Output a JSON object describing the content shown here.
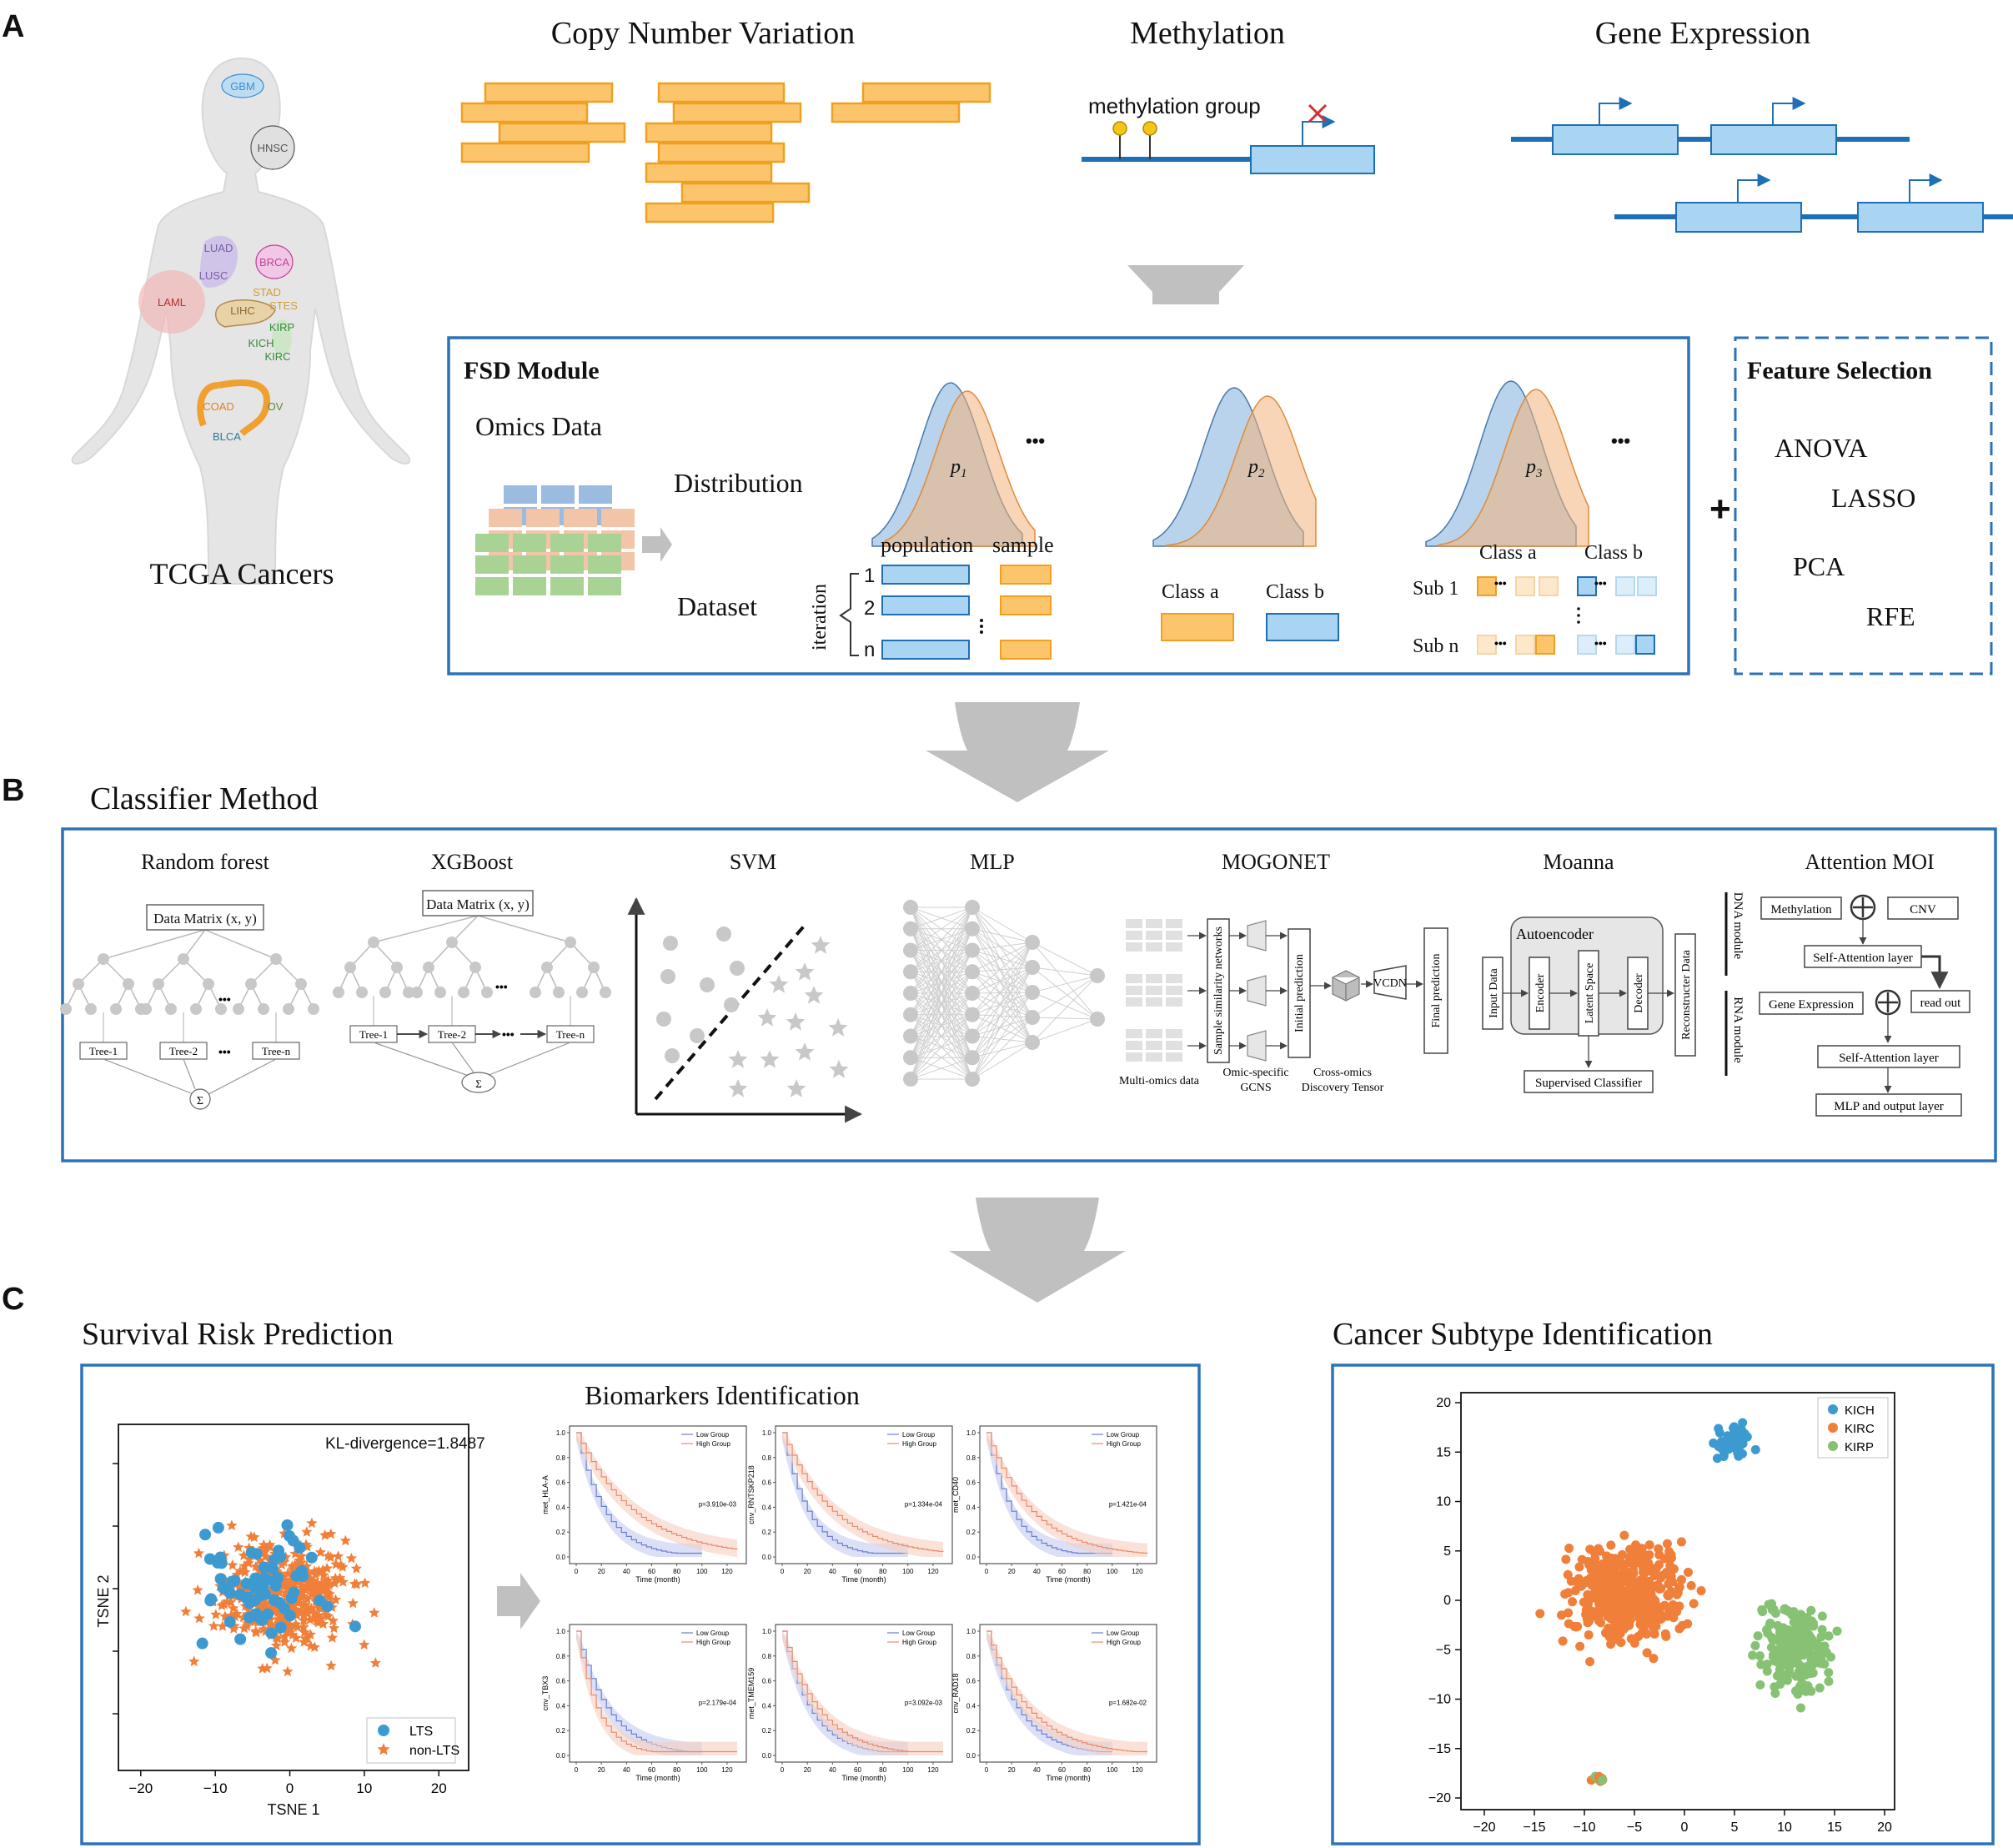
{
  "colors": {
    "orange_fill": "#fcc56c",
    "orange_stroke": "#f0a020",
    "orange_pt": "#f07f3a",
    "blue_fill": "#a9d4f2",
    "blue_stroke": "#1f6fb5",
    "blue_pt": "#3d9ad1",
    "green_pt": "#86c174",
    "frame_blue": "#2b72b8",
    "arrow_gray": "#c0c0c0",
    "low_group": "#6a7fd0",
    "high_group": "#e98a6a"
  },
  "panel_a": {
    "letter": "A",
    "body_organs": [
      {
        "label": "GBM",
        "color": "#3d8fd1",
        "cx": 291,
        "cy": 103,
        "rx": 25,
        "ry": 14,
        "fill": "#bcdcf2"
      },
      {
        "label": "HNSC",
        "color": "#555555",
        "cx": 327,
        "cy": 177,
        "rx": 26,
        "ry": 26,
        "fill": "#e0e0e0"
      },
      {
        "label": "LUAD",
        "color": "#7a5da8",
        "cx": 262,
        "cy": 297,
        "rx": 0,
        "ry": 0,
        "fill": ""
      },
      {
        "label": "LUSC",
        "color": "#7a5da8",
        "cx": 256,
        "cy": 330,
        "rx": 0,
        "ry": 0,
        "fill": ""
      },
      {
        "label": "BRCA",
        "color": "#c2419b",
        "cx": 329,
        "cy": 314,
        "rx": 22,
        "ry": 20,
        "fill": "#f2c7e6"
      },
      {
        "label": "LAML",
        "color": "#b03030",
        "cx": 206,
        "cy": 362,
        "rx": 0,
        "ry": 0,
        "fill": ""
      },
      {
        "label": "STAD",
        "color": "#d0a030",
        "cx": 320,
        "cy": 350,
        "rx": 0,
        "ry": 0,
        "fill": ""
      },
      {
        "label": "STES",
        "color": "#d0a030",
        "cx": 340,
        "cy": 366,
        "rx": 0,
        "ry": 0,
        "fill": ""
      },
      {
        "label": "LIHC",
        "color": "#8a6a30",
        "cx": 291,
        "cy": 372,
        "rx": 0,
        "ry": 0,
        "fill": ""
      },
      {
        "label": "KIRP",
        "color": "#3a8a3a",
        "cx": 338,
        "cy": 392,
        "rx": 0,
        "ry": 0,
        "fill": ""
      },
      {
        "label": "KICH",
        "color": "#3a8a3a",
        "cx": 313,
        "cy": 411,
        "rx": 0,
        "ry": 0,
        "fill": ""
      },
      {
        "label": "KIRC",
        "color": "#3a8a3a",
        "cx": 333,
        "cy": 427,
        "rx": 0,
        "ry": 0,
        "fill": ""
      },
      {
        "label": "COAD",
        "color": "#e08020",
        "cx": 262,
        "cy": 487,
        "rx": 0,
        "ry": 0,
        "fill": ""
      },
      {
        "label": "OV",
        "color": "#5a8a3a",
        "cx": 330,
        "cy": 487,
        "rx": 0,
        "ry": 0,
        "fill": ""
      },
      {
        "label": "BLCA",
        "color": "#2a7a9a",
        "cx": 272,
        "cy": 523,
        "rx": 0,
        "ry": 0,
        "fill": ""
      }
    ],
    "body_caption": "TCGA Cancers",
    "cnv_title": "Copy Number Variation",
    "methylation_title": "Methylation",
    "methylation_group": "methylation group",
    "gene_expression_title": "Gene Expression",
    "fsd_title": "FSD Module",
    "omics_data": "Omics Data",
    "distribution": "Distribution",
    "dataset": "Dataset",
    "population": "population",
    "sample": "sample",
    "iteration": "iteration",
    "iter_labels": [
      "1",
      "2",
      "n"
    ],
    "p_labels": [
      "p",
      "p",
      "p"
    ],
    "p_subs": [
      "1",
      "2",
      "3"
    ],
    "ellipsis": "•••",
    "class_a": "Class a",
    "class_b": "Class b",
    "sub1": "Sub 1",
    "subn": "Sub n",
    "plus": "+",
    "fs_title": "Feature Selection",
    "fs_methods": [
      "ANOVA",
      "LASSO",
      "PCA",
      "RFE"
    ]
  },
  "panel_b": {
    "letter": "B",
    "title": "Classifier Method",
    "methods": [
      "Random forest",
      "XGBoost",
      "SVM",
      "MLP",
      "MOGONET",
      "Moanna",
      "Attention MOI"
    ],
    "data_matrix": "Data Matrix (x, y)",
    "tree1": "Tree-1",
    "tree2": "Tree-2",
    "treen": "Tree-n",
    "sum_symbol": "Σ",
    "mogonet": {
      "ssn": "Sample similarity networks",
      "initial": "Initial prediction",
      "vcdn": "VCDN",
      "final": "Final prediction",
      "multi": "Multi-omics data",
      "gcns1": "Omic-specific",
      "gcns2": "GCNS",
      "tensor1": "Cross-omics",
      "tensor2": "Discovery Tensor"
    },
    "moanna": {
      "autoencoder": "Autoencoder",
      "input": "Input Data",
      "encoder": "Encoder",
      "latent": "Latent Space",
      "decoder": "Decoder",
      "recon": "Reconstructer Data",
      "supervised": "Supervised Classifier"
    },
    "attention": {
      "dna": "DNA module",
      "rna": "RNA module",
      "methylation": "Methylation",
      "cnv": "CNV",
      "sa1": "Self-Attention layer",
      "gene_expr": "Gene Expression",
      "read_out": "read out",
      "sa2": "Self-Attention layer",
      "mlp_out": "MLP and output layer"
    }
  },
  "panel_c": {
    "letter": "C",
    "survival_title": "Survival Risk Prediction",
    "subtype_title": "Cancer Subtype Identification",
    "biomarkers_title": "Biomarkers Identification",
    "tsne": {
      "kl": "KL-divergence=1.8487",
      "xlabel": "TSNE 1",
      "ylabel": "TSNE 2",
      "xticks": [
        "−20",
        "−10",
        "0",
        "10",
        "20"
      ],
      "legend": [
        "LTS",
        "non-LTS"
      ]
    },
    "km_plots": [
      {
        "ylabel": "met_HLA-A",
        "p": "p=3.910e-03"
      },
      {
        "ylabel": "cnv_RNTSKP218",
        "p": "p=1.334e-04"
      },
      {
        "ylabel": "met_CD40",
        "p": "p=1.421e-04"
      },
      {
        "ylabel": "cnv_TBX3",
        "p": "p=2.179e-04"
      },
      {
        "ylabel": "met_TMEM159",
        "p": "p=3.092e-03"
      },
      {
        "ylabel": "cnv_RAD18",
        "p": "p=1.682e-02"
      }
    ],
    "km_legend": [
      "Low Group",
      "High Group"
    ],
    "km_xlabel": "Time (month)",
    "km_xticks": [
      "0",
      "20",
      "40",
      "60",
      "80",
      "100",
      "120"
    ],
    "km_yticks": [
      "0.0",
      "0.2",
      "0.4",
      "0.6",
      "0.8",
      "1.0"
    ],
    "subtype": {
      "legend": [
        "KICH",
        "KIRC",
        "KIRP"
      ],
      "xticks": [
        "−20",
        "−15",
        "−10",
        "−5",
        "0",
        "5",
        "10",
        "15",
        "20"
      ],
      "yticks": [
        "20",
        "15",
        "10",
        "5",
        "0",
        "−5",
        "−10",
        "−15",
        "−20"
      ]
    }
  }
}
